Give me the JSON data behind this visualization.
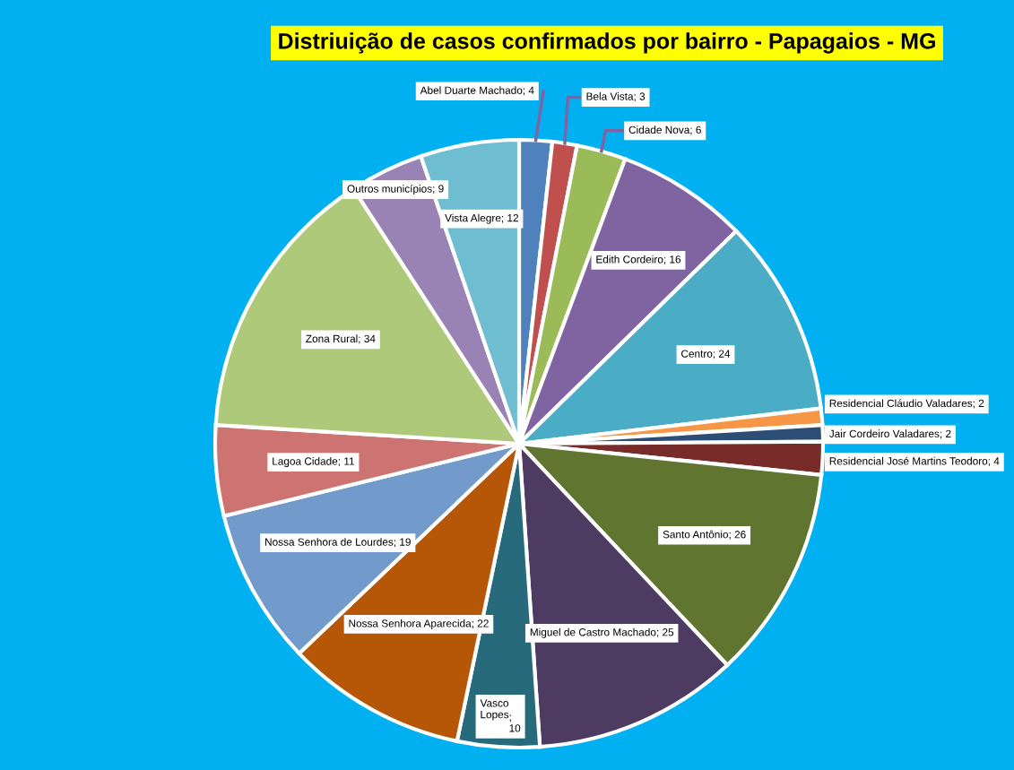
{
  "chart_data": {
    "type": "pie",
    "title": "Distriuição de casos confirmados por bairro - Papagaios - MG",
    "categories": [
      "Abel Duarte Machado",
      "Bela Vista",
      "Cidade Nova",
      "Edith Cordeiro",
      "Centro",
      "Residencial Cláudio Valadares",
      "Jair Cordeiro Valadares",
      "Residencial José Martins Teodoro",
      "Santo Antônio",
      "Miguel de Castro Machado",
      "Vasco Lopes",
      "Nossa Senhora Aparecida",
      "Nossa Senhora de Lourdes",
      "Lagoa Cidade",
      "Zona Rural",
      "Outros municípios",
      "Vista Alegre"
    ],
    "values": [
      4,
      3,
      6,
      16,
      24,
      2,
      2,
      4,
      26,
      25,
      10,
      22,
      19,
      11,
      34,
      9,
      12
    ],
    "value_labels": [
      "; 4",
      "; 3",
      "; 6",
      "; 16",
      "; 24",
      "; 2",
      "; 2",
      "; 4",
      "; 26",
      "; 25",
      ";\n10",
      "; 22",
      "; 19",
      "; 11",
      "; 34",
      "; 9",
      "; 12"
    ],
    "colors": [
      "#4f81bd",
      "#c0504d",
      "#9bbb59",
      "#8064a2",
      "#4bacc6",
      "#f79646",
      "#2c4d75",
      "#772c2a",
      "#5f7530",
      "#4d3b62",
      "#276a7c",
      "#b65708",
      "#729aca",
      "#cd7371",
      "#afc97a",
      "#9983b5",
      "#6fbdd1"
    ]
  }
}
